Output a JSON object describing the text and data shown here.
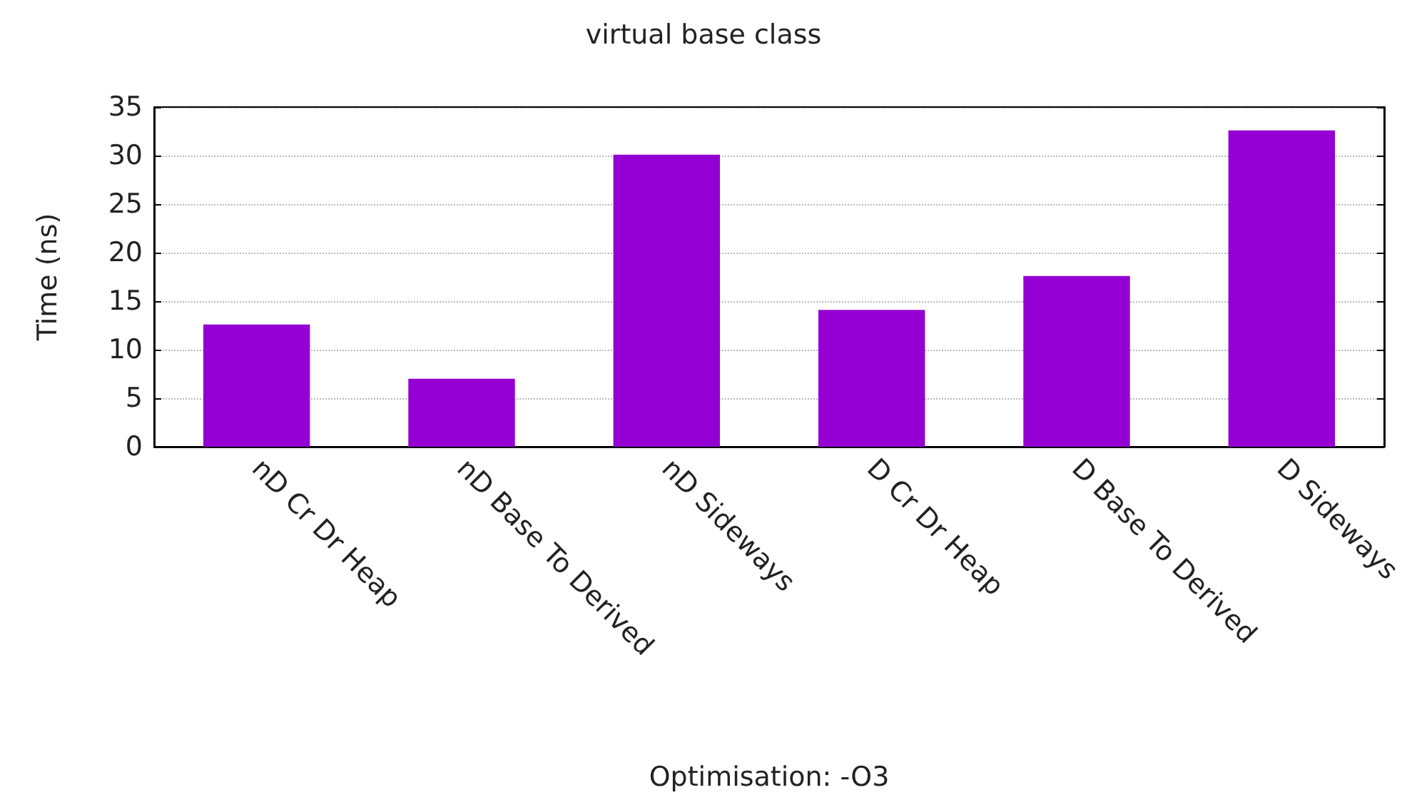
{
  "chart_data": {
    "type": "bar",
    "title": "virtual base class",
    "xlabel": "Optimisation: -O3",
    "ylabel": "Time (ns)",
    "categories": [
      "nD Cr Dr Heap",
      "nD Base To Derived",
      "nD Sideways",
      "D Cr Dr Heap",
      "D Base To Derived",
      "D Sideways"
    ],
    "values": [
      12.6,
      7.0,
      30.1,
      14.1,
      17.6,
      32.6
    ],
    "color": "#9400d3",
    "ylim": [
      0,
      35
    ],
    "yticks": [
      0,
      5,
      10,
      15,
      20,
      25,
      30,
      35
    ],
    "grid": "y"
  }
}
